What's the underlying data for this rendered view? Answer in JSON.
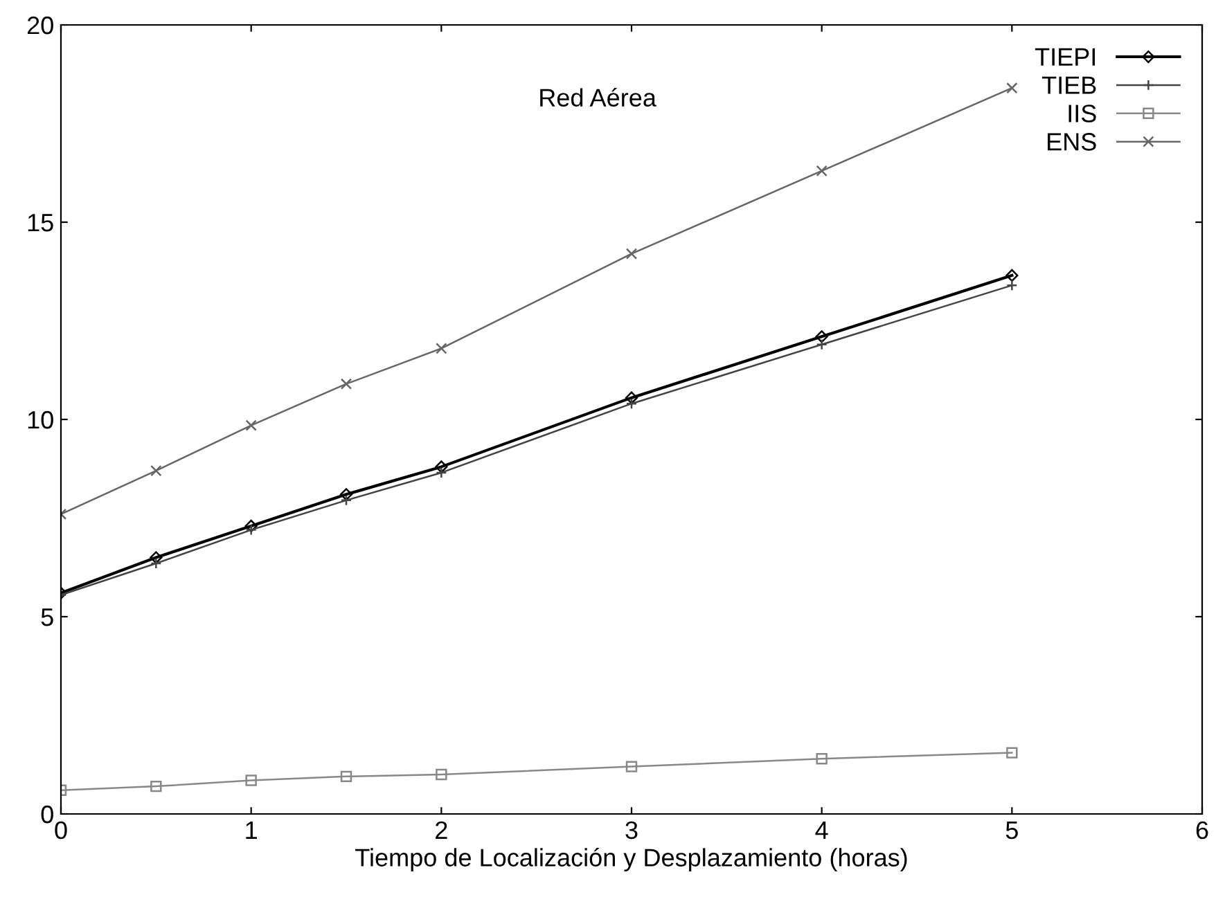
{
  "chart_data": {
    "type": "line",
    "xlabel": "Tiempo de Localización y Desplazamiento (horas)",
    "annotations": [
      "Red Aérea"
    ],
    "x": [
      0,
      0.5,
      1,
      1.5,
      2,
      3,
      4,
      5
    ],
    "series": [
      {
        "name": "TIEPI",
        "color": "#000000",
        "marker": "diamond",
        "values": [
          5.6,
          6.5,
          7.3,
          8.1,
          8.8,
          10.55,
          12.1,
          13.65
        ]
      },
      {
        "name": "TIEB",
        "color": "#444444",
        "marker": "cross",
        "values": [
          5.55,
          6.35,
          7.2,
          7.95,
          8.65,
          10.4,
          11.9,
          13.4
        ]
      },
      {
        "name": "IIS",
        "color": "#888888",
        "marker": "square",
        "values": [
          0.6,
          0.7,
          0.85,
          0.95,
          1.0,
          1.2,
          1.4,
          1.55
        ]
      },
      {
        "name": "ENS",
        "color": "#666666",
        "marker": "x",
        "values": [
          7.6,
          8.7,
          9.85,
          10.9,
          11.8,
          14.2,
          16.3,
          18.4
        ]
      }
    ],
    "xlim": [
      0,
      6
    ],
    "xticks": [
      0,
      1,
      2,
      3,
      4,
      5,
      6
    ],
    "ylim": [
      0,
      20
    ],
    "yticks": [
      0,
      5,
      10,
      15,
      20
    ],
    "grid": false,
    "legend": "top right"
  }
}
